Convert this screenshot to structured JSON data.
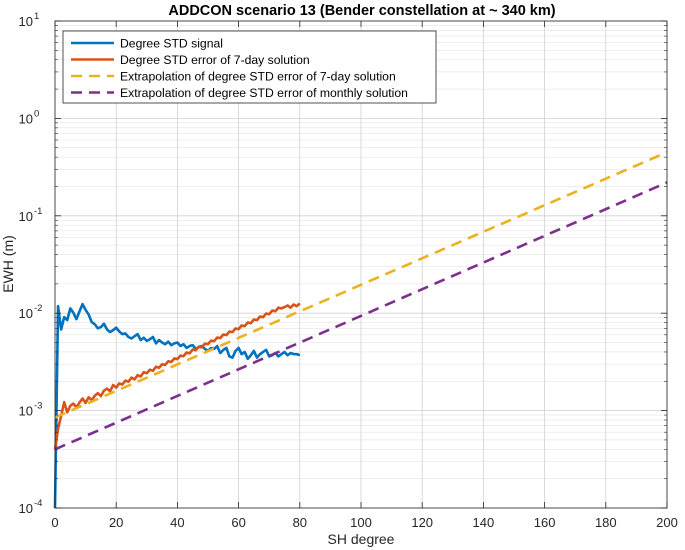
{
  "chart_data": {
    "type": "line",
    "title": "ADDCON scenario 13 (Bender constellation at ~ 340 km)",
    "xlabel": "SH degree",
    "ylabel": "EWH (m)",
    "xlim": [
      0,
      200
    ],
    "ylim": [
      0.0001,
      10
    ],
    "y_scale": "log",
    "grid": true,
    "minor_grid": true,
    "legend_position": "top-left",
    "x_ticks": [
      0,
      20,
      40,
      60,
      80,
      100,
      120,
      140,
      160,
      180,
      200
    ],
    "x_tick_labels": [
      "0",
      "20",
      "40",
      "60",
      "80",
      "100",
      "120",
      "140",
      "160",
      "180",
      "200"
    ],
    "y_ticks": [
      0.0001,
      0.001,
      0.01,
      0.1,
      1,
      10
    ],
    "y_tick_labels": [
      {
        "base": "10",
        "exp": "-4"
      },
      {
        "base": "10",
        "exp": "-3"
      },
      {
        "base": "10",
        "exp": "-2"
      },
      {
        "base": "10",
        "exp": "-1"
      },
      {
        "base": "10",
        "exp": "0"
      },
      {
        "base": "10",
        "exp": "1"
      }
    ],
    "series": [
      {
        "name": "Degree STD signal",
        "color": "#0072BD",
        "style": "solid",
        "x": [
          0,
          1,
          2,
          3,
          4,
          5,
          6,
          7,
          8,
          9,
          10,
          11,
          12,
          13,
          14,
          15,
          16,
          17,
          18,
          19,
          20,
          21,
          22,
          23,
          24,
          25,
          26,
          27,
          28,
          29,
          30,
          31,
          32,
          33,
          34,
          35,
          36,
          37,
          38,
          39,
          40,
          41,
          42,
          43,
          44,
          45,
          46,
          47,
          48,
          49,
          50,
          51,
          52,
          53,
          54,
          55,
          56,
          57,
          58,
          59,
          60,
          61,
          62,
          63,
          64,
          65,
          66,
          67,
          68,
          69,
          70,
          71,
          72,
          73,
          74,
          75,
          76,
          77,
          78,
          79,
          80
        ],
        "y": [
          0.0001,
          0.0118,
          0.0068,
          0.0091,
          0.0085,
          0.0112,
          0.0101,
          0.0087,
          0.0104,
          0.0124,
          0.0108,
          0.0097,
          0.0081,
          0.0077,
          0.007,
          0.0072,
          0.0078,
          0.0068,
          0.0064,
          0.0067,
          0.0071,
          0.0065,
          0.0061,
          0.0062,
          0.0057,
          0.0055,
          0.0058,
          0.0061,
          0.0053,
          0.0056,
          0.0052,
          0.0054,
          0.0057,
          0.0049,
          0.0053,
          0.005,
          0.0048,
          0.0051,
          0.0047,
          0.0049,
          0.005,
          0.0046,
          0.0048,
          0.0044,
          0.0046,
          0.0047,
          0.0043,
          0.0045,
          0.0046,
          0.0043,
          0.0041,
          0.0044,
          0.0043,
          0.0046,
          0.0039,
          0.0042,
          0.0044,
          0.0036,
          0.0035,
          0.0041,
          0.0044,
          0.0038,
          0.004,
          0.0034,
          0.0037,
          0.0041,
          0.0035,
          0.0038,
          0.004,
          0.0042,
          0.0036,
          0.0037,
          0.0039,
          0.0036,
          0.0038,
          0.004,
          0.0037,
          0.0039,
          0.0038,
          0.0038,
          0.0037
        ]
      },
      {
        "name": "Degree STD error of 7-day solution",
        "color": "#D95319",
        "style": "solid",
        "x": [
          0,
          1,
          2,
          3,
          4,
          5,
          6,
          7,
          8,
          9,
          10,
          11,
          12,
          13,
          14,
          15,
          16,
          17,
          18,
          19,
          20,
          21,
          22,
          23,
          24,
          25,
          26,
          27,
          28,
          29,
          30,
          31,
          32,
          33,
          34,
          35,
          36,
          37,
          38,
          39,
          40,
          41,
          42,
          43,
          44,
          45,
          46,
          47,
          48,
          49,
          50,
          51,
          52,
          53,
          54,
          55,
          56,
          57,
          58,
          59,
          60,
          61,
          62,
          63,
          64,
          65,
          66,
          67,
          68,
          69,
          70,
          71,
          72,
          73,
          74,
          75,
          76,
          77,
          78,
          79,
          80
        ],
        "y": [
          0.0004,
          0.00065,
          0.00088,
          0.00122,
          0.00096,
          0.00112,
          0.00118,
          0.00108,
          0.00121,
          0.00133,
          0.0012,
          0.00137,
          0.00128,
          0.00142,
          0.00151,
          0.00141,
          0.0016,
          0.00168,
          0.00158,
          0.00183,
          0.00172,
          0.0019,
          0.00185,
          0.00203,
          0.00198,
          0.00218,
          0.00209,
          0.00231,
          0.00224,
          0.00248,
          0.00242,
          0.00263,
          0.00256,
          0.00282,
          0.00275,
          0.00299,
          0.00294,
          0.00321,
          0.00316,
          0.00343,
          0.00338,
          0.00367,
          0.00362,
          0.00395,
          0.00387,
          0.00424,
          0.00416,
          0.00454,
          0.00446,
          0.00487,
          0.00482,
          0.00523,
          0.00516,
          0.00562,
          0.00555,
          0.00604,
          0.00596,
          0.00648,
          0.0064,
          0.00697,
          0.00686,
          0.00748,
          0.00736,
          0.00803,
          0.0079,
          0.00862,
          0.00849,
          0.00925,
          0.0091,
          0.00992,
          0.00976,
          0.01065,
          0.01046,
          0.01141,
          0.01121,
          0.01155,
          0.012,
          0.0114,
          0.0123,
          0.0118,
          0.0126
        ]
      },
      {
        "name": "Extrapolation of degree STD error of 7-day solution",
        "color": "#EDB120",
        "style": "dashed",
        "x": [
          0,
          200
        ],
        "y": [
          0.00085,
          0.45
        ]
      },
      {
        "name": "Extrapolation of degree STD error of monthly solution",
        "color": "#7E2F8E",
        "style": "dashed",
        "x": [
          0,
          200
        ],
        "y": [
          0.0004,
          0.22
        ]
      }
    ]
  }
}
